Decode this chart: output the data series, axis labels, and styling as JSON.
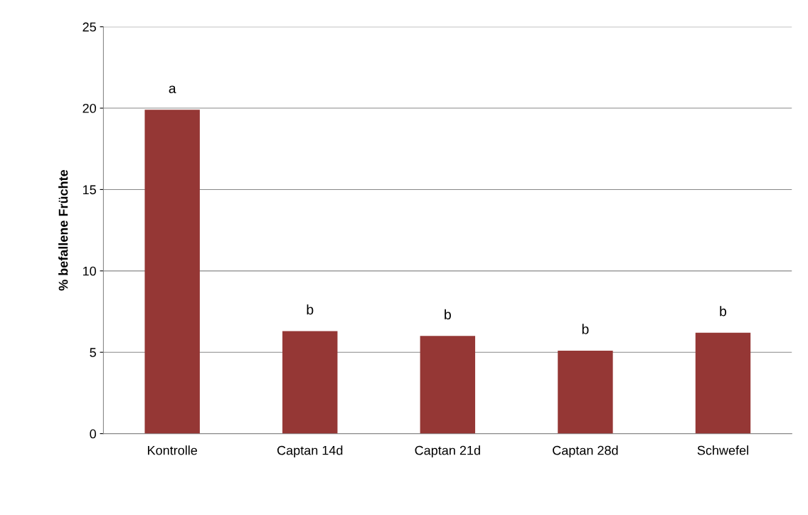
{
  "chart_data": {
    "type": "bar",
    "ylabel": "% befallene Früchte",
    "categories": [
      "Kontrolle",
      "Captan 14d",
      "Captan 21d",
      "Captan 28d",
      "Schwefel"
    ],
    "values": [
      19.9,
      6.3,
      6.0,
      5.1,
      6.2
    ],
    "color": "#953735",
    "ylim": [
      0,
      25
    ],
    "yticks": [
      0,
      5,
      10,
      15,
      20,
      25
    ],
    "grid": "y",
    "annotations": [
      {
        "text": "a",
        "x": "Kontrolle",
        "y": 19.9
      },
      {
        "text": "b",
        "x": "Captan 14d",
        "y": 6.3
      },
      {
        "text": "b",
        "x": "Captan 21d",
        "y": 6.0
      },
      {
        "text": "b",
        "x": "Captan 28d",
        "y": 5.1
      },
      {
        "text": "b",
        "x": "Schwefel",
        "y": 6.2
      }
    ]
  }
}
